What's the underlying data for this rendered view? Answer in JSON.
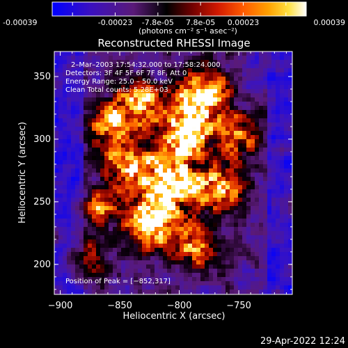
{
  "colorbar": {
    "ticks": [
      "-0.00039",
      "-0.00023",
      "-7.8e-05",
      "7.8e-05",
      "0.00023",
      "0.00039"
    ],
    "units": "(photons cm⁻² s⁻¹ asec⁻²)",
    "range": [
      -0.00039,
      0.00039
    ]
  },
  "chart_data": {
    "type": "heatmap",
    "title": "Reconstructed RHESSI Image",
    "xlabel": "Heliocentric X (arcsec)",
    "ylabel": "Heliocentric Y (arcsec)",
    "xlim": [
      -905,
      -705
    ],
    "ylim": [
      176,
      370
    ],
    "x_ticks": [
      {
        "value": -900,
        "label": "−900"
      },
      {
        "value": -850,
        "label": "−850"
      },
      {
        "value": -800,
        "label": "−800"
      },
      {
        "value": -750,
        "label": "−750"
      }
    ],
    "y_ticks": [
      {
        "value": 200,
        "label": "200"
      },
      {
        "value": 250,
        "label": "250"
      },
      {
        "value": 300,
        "label": "300"
      },
      {
        "value": 350,
        "label": "350"
      }
    ],
    "info_lines": [
      "2–Mar–2003 17:54:32.000 to 17:58:24.000",
      "Detectors: 3F 4F 5F 6F 7F 8F, Att 0",
      "Energy Range: 25.0 – 50.0 keV",
      "Clean     Total counts: 5.28E+03"
    ],
    "peak_label": "Position of Peak = [−852,317]",
    "peak": [
      -852,
      317
    ],
    "colormap_stops": [
      "#0000ff",
      "#5b1fa0",
      "#2a0a22",
      "#000000",
      "#8a0000",
      "#e02000",
      "#ff8c00",
      "#ffd000",
      "#ffffa0",
      "#ffffff"
    ]
  },
  "footer": {
    "timestamp": "29-Apr-2022 12:24"
  }
}
